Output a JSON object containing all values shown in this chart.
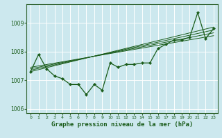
{
  "title": "Graphe pression niveau de la mer (hPa)",
  "bg_color": "#cce8ee",
  "grid_color": "#aacccc",
  "line_color": "#1a5c1a",
  "xlim": [
    -0.5,
    23.5
  ],
  "ylim": [
    1005.85,
    1009.65
  ],
  "yticks": [
    1006,
    1007,
    1008,
    1009
  ],
  "xticks": [
    0,
    1,
    2,
    3,
    4,
    5,
    6,
    7,
    8,
    9,
    10,
    11,
    12,
    13,
    14,
    15,
    16,
    17,
    18,
    19,
    20,
    21,
    22,
    23
  ],
  "main_series": [
    1007.3,
    1007.9,
    1007.4,
    1007.15,
    1007.05,
    1006.85,
    1006.85,
    1006.5,
    1006.85,
    1006.65,
    1007.6,
    1007.45,
    1007.55,
    1007.55,
    1007.6,
    1007.6,
    1008.1,
    1008.25,
    1008.4,
    1008.4,
    1008.5,
    1009.35,
    1008.45,
    1008.8
  ],
  "trend_lines": [
    [
      0,
      1007.3,
      23,
      1008.85
    ],
    [
      0,
      1007.35,
      23,
      1008.75
    ],
    [
      0,
      1007.4,
      23,
      1008.65
    ],
    [
      0,
      1007.45,
      23,
      1008.55
    ]
  ],
  "spine_color": "#336633",
  "label_color": "#1a5c1a",
  "xlabel_fontsize": 6.5
}
